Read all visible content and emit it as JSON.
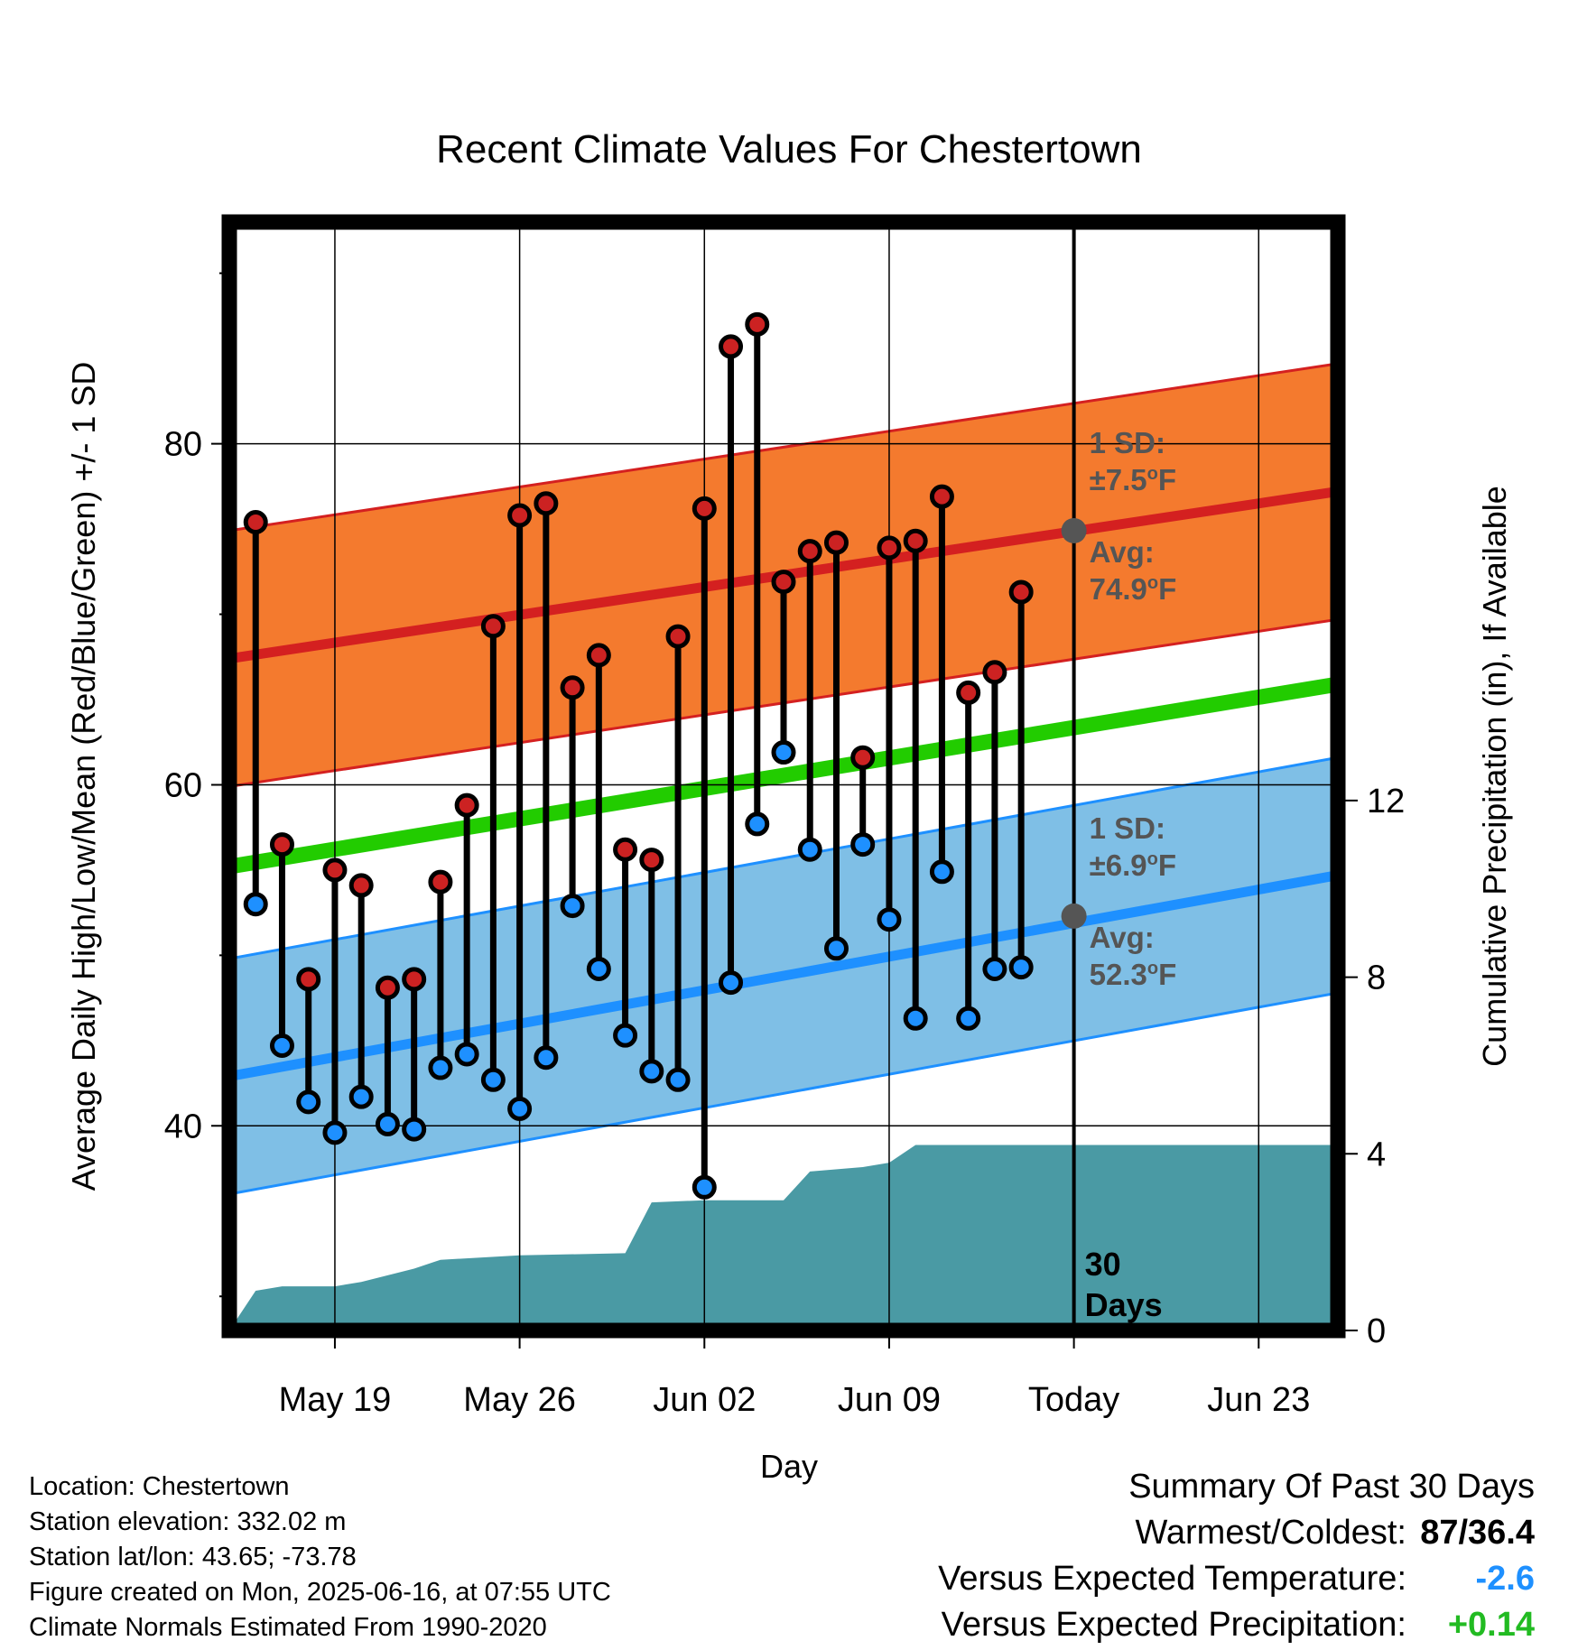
{
  "chart_data": {
    "type": "line",
    "title": "Recent Climate Values For Chestertown",
    "xlabel": "Day",
    "ylabel": "Average Daily High/Low/Mean (Red/Blue/Green) +/- 1 SD",
    "y2label": "Cumulative Precipitation (in), If Available",
    "x_ticks": [
      "May 19",
      "May 26",
      "Jun 02",
      "Jun 09",
      "Today",
      "Jun 23"
    ],
    "x_tick_dates": [
      "2025-05-19",
      "2025-05-26",
      "2025-06-02",
      "2025-06-09",
      "2025-06-16",
      "2025-06-23"
    ],
    "xlim": [
      "2025-05-15",
      "2025-06-26"
    ],
    "today": "2025-06-16",
    "ylim": [
      28,
      93
    ],
    "y_ticks": [
      40,
      60,
      80
    ],
    "y2lim": [
      0,
      25.1
    ],
    "y2_ticks": [
      0,
      4,
      8,
      12
    ],
    "grid": true,
    "dates": [
      "2025-05-16",
      "2025-05-17",
      "2025-05-18",
      "2025-05-19",
      "2025-05-20",
      "2025-05-21",
      "2025-05-22",
      "2025-05-23",
      "2025-05-24",
      "2025-05-25",
      "2025-05-26",
      "2025-05-27",
      "2025-05-28",
      "2025-05-29",
      "2025-05-30",
      "2025-05-31",
      "2025-06-01",
      "2025-06-02",
      "2025-06-03",
      "2025-06-04",
      "2025-06-05",
      "2025-06-06",
      "2025-06-07",
      "2025-06-08",
      "2025-06-09",
      "2025-06-10",
      "2025-06-11",
      "2025-06-12",
      "2025-06-13",
      "2025-06-14",
      "2025-06-15"
    ],
    "highs": [
      75.4,
      56.5,
      48.6,
      55.0,
      54.1,
      48.1,
      48.6,
      54.3,
      58.8,
      69.3,
      75.8,
      76.5,
      65.7,
      67.6,
      56.2,
      55.6,
      68.7,
      76.2,
      85.7,
      87.0,
      71.9,
      73.7,
      74.2,
      61.6,
      73.9,
      74.3,
      76.9,
      65.4,
      66.6,
      71.3,
      0
    ],
    "lows": [
      53.0,
      44.7,
      41.4,
      39.6,
      41.7,
      40.1,
      39.8,
      43.4,
      44.2,
      42.7,
      41.0,
      44.0,
      52.9,
      49.2,
      45.3,
      43.2,
      42.7,
      36.4,
      48.4,
      57.7,
      61.9,
      56.2,
      50.4,
      56.5,
      52.1,
      46.3,
      54.9,
      46.3,
      49.2,
      49.3,
      0
    ],
    "has_obs": [
      true,
      true,
      true,
      true,
      true,
      true,
      true,
      true,
      true,
      true,
      true,
      true,
      true,
      true,
      true,
      true,
      true,
      true,
      true,
      true,
      true,
      true,
      true,
      true,
      true,
      true,
      true,
      true,
      true,
      true,
      false
    ],
    "normal_high": {
      "start": 67.4,
      "end": 77.2,
      "sd": 7.5
    },
    "normal_low": {
      "start": 42.9,
      "end": 54.7,
      "sd": 6.9
    },
    "normal_mean": {
      "start": 55.2,
      "end": 65.9
    },
    "precip_cumulative": [
      {
        "date": "2025-05-15",
        "value": 0.0
      },
      {
        "date": "2025-05-16",
        "value": 0.9
      },
      {
        "date": "2025-05-17",
        "value": 1.0
      },
      {
        "date": "2025-05-19",
        "value": 1.0
      },
      {
        "date": "2025-05-20",
        "value": 1.1
      },
      {
        "date": "2025-05-22",
        "value": 1.4
      },
      {
        "date": "2025-05-23",
        "value": 1.6
      },
      {
        "date": "2025-05-26",
        "value": 1.7
      },
      {
        "date": "2025-05-30",
        "value": 1.75
      },
      {
        "date": "2025-05-31",
        "value": 2.9
      },
      {
        "date": "2025-06-02",
        "value": 2.95
      },
      {
        "date": "2025-06-05",
        "value": 2.95
      },
      {
        "date": "2025-06-06",
        "value": 3.6
      },
      {
        "date": "2025-06-08",
        "value": 3.7
      },
      {
        "date": "2025-06-09",
        "value": 3.8
      },
      {
        "date": "2025-06-10",
        "value": 4.2
      },
      {
        "date": "2025-06-26",
        "value": 4.2
      }
    ],
    "annotations": {
      "high_sd": {
        "label": "1 SD:",
        "value": "±7.5",
        "unit": "F"
      },
      "high_avg": {
        "label": "Avg:",
        "value": "74.9",
        "unit": "F"
      },
      "low_sd": {
        "label": "1 SD:",
        "value": "±6.9",
        "unit": "F"
      },
      "low_avg": {
        "label": "Avg:",
        "value": "52.3",
        "unit": "F"
      },
      "days_num": "30",
      "days_word": "Days"
    },
    "today_avg_high": 74.9,
    "today_avg_low": 52.3,
    "colors": {
      "high_band": "#f47a2e",
      "high_line": "#d42020",
      "low_band": "#7fbfe6",
      "low_line": "#1e90ff",
      "mean_line": "#22cc00",
      "precip": "#4a9aa4",
      "high_dot": "#cc2222",
      "low_dot": "#1e90ff"
    }
  },
  "info": {
    "location": "Location: Chestertown",
    "elevation": "Station elevation: 332.02 m",
    "latlon": "Station lat/lon: 43.65; -73.78",
    "created": "Figure created on Mon, 2025-06-16, at 07:55 UTC",
    "normals": "Climate Normals Estimated From 1990-2020"
  },
  "summary": {
    "title": "Summary Of Past 30 Days",
    "warm_label": "Warmest/Coldest:",
    "warm_value": "87/36.4",
    "temp_label": "Versus Expected Temperature:",
    "temp_value": "-2.6",
    "precip_label": "Versus Expected Precipitation:",
    "precip_value": "+0.14"
  }
}
